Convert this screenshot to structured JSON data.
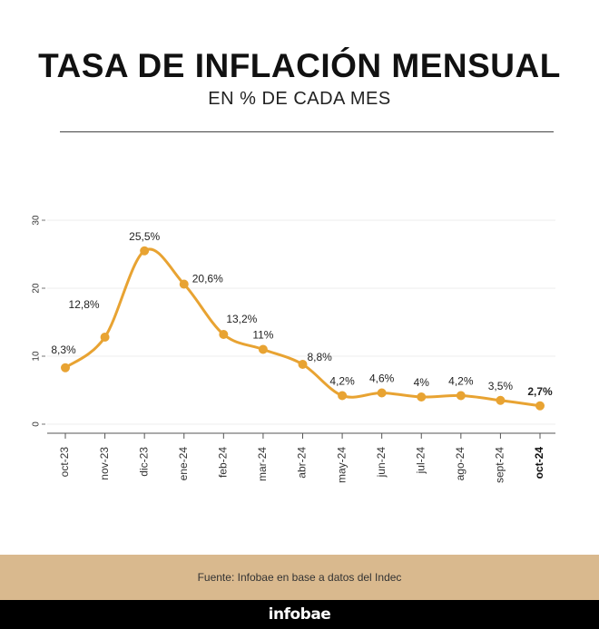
{
  "header": {
    "title": "TASA DE INFLACIÓN MENSUAL",
    "subtitle": "EN % DE CADA MES"
  },
  "footer": {
    "source": "Fuente: Infobae en base a datos del Indec",
    "brand": "infobae"
  },
  "colors": {
    "line": "#E8A332",
    "point": "#E8A332",
    "source_band": "#D9B98E",
    "brand_bar": "#000000"
  },
  "chart_data": {
    "type": "line",
    "title": "TASA DE INFLACIÓN MENSUAL",
    "subtitle": "EN % DE CADA MES",
    "categories": [
      "oct-23",
      "nov-23",
      "dic-23",
      "ene-24",
      "feb-24",
      "mar-24",
      "abr-24",
      "may-24",
      "jun-24",
      "jul-24",
      "ago-24",
      "sept-24",
      "oct-24"
    ],
    "values": [
      8.3,
      12.8,
      25.5,
      20.6,
      13.2,
      11,
      8.8,
      4.2,
      4.6,
      4,
      4.2,
      3.5,
      2.7
    ],
    "data_labels": [
      "8,3%",
      "12,8%",
      "25,5%",
      "20,6%",
      "13,2%",
      "11%",
      "8,8%",
      "4,2%",
      "4,6%",
      "4%",
      "4,2%",
      "3,5%",
      "2,7%"
    ],
    "highlight_last": true,
    "yticks": [
      0,
      10,
      20,
      30
    ],
    "ylim": [
      0,
      30
    ],
    "xlabel": "",
    "ylabel": "",
    "grid": true,
    "smooth": true,
    "legend": "none"
  }
}
